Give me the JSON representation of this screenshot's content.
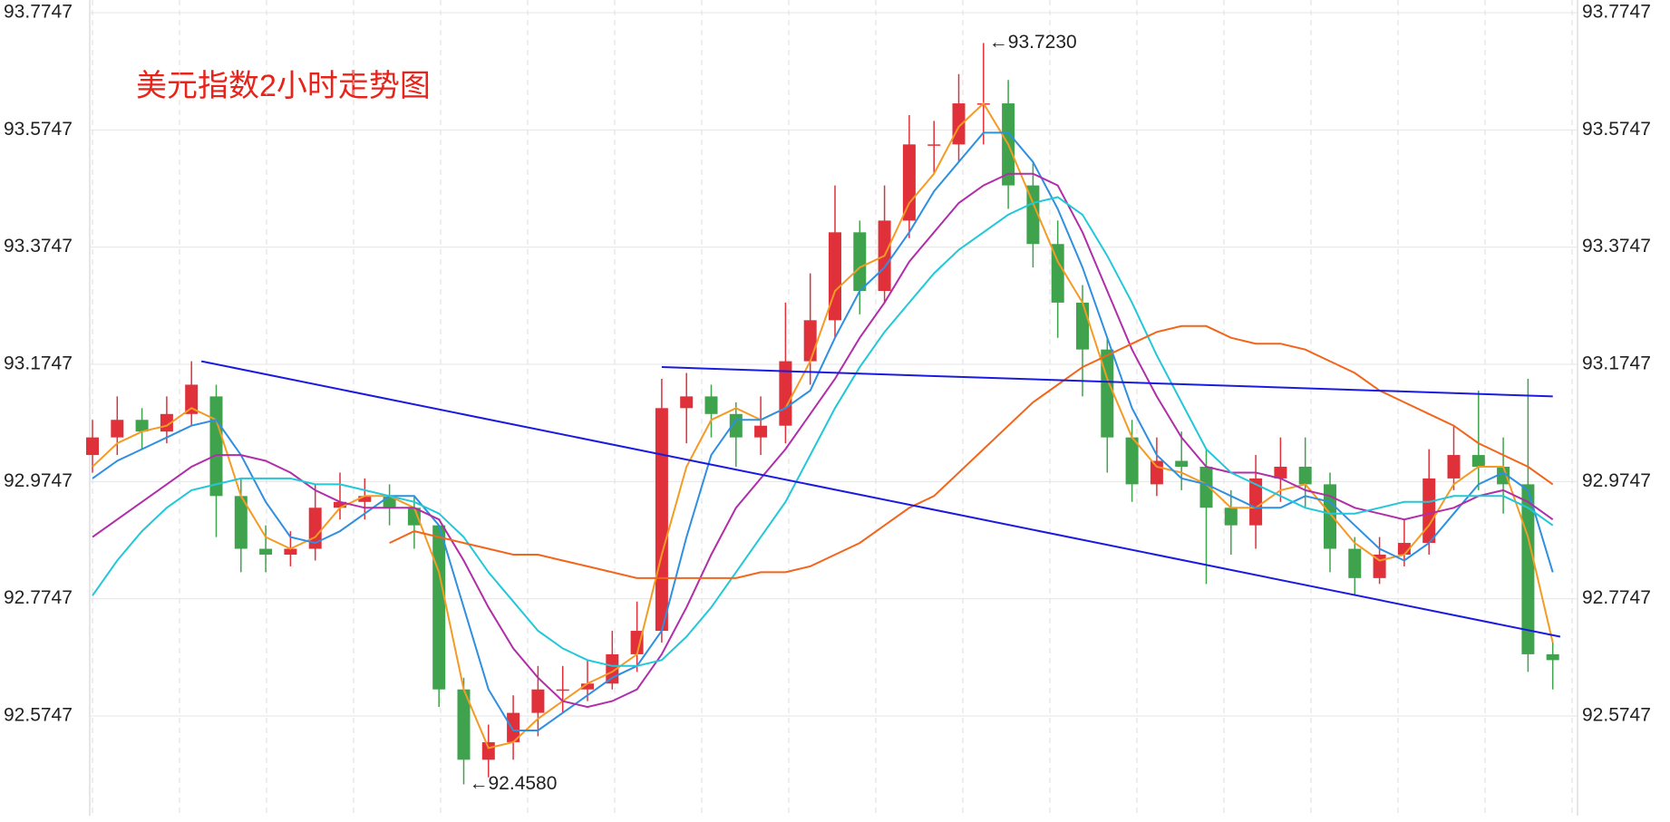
{
  "chart_data": {
    "type": "candlestick",
    "title": "美元指数2小时走势图",
    "title_color": "#e8231a",
    "ylim": [
      92.4046,
      93.7964
    ],
    "yticks": [
      92.5747,
      92.7747,
      92.9747,
      93.1747,
      93.3747,
      93.5747,
      93.7747
    ],
    "grid": true,
    "up_color": "#e0303a",
    "down_color": "#3fa34d",
    "open": [
      93.02,
      93.05,
      93.08,
      93.06,
      93.09,
      93.12,
      92.95,
      92.86,
      92.85,
      92.86,
      92.93,
      92.94,
      92.95,
      92.93,
      92.9,
      92.62,
      92.5,
      92.53,
      92.58,
      92.62,
      92.62,
      92.63,
      92.68,
      92.72,
      93.1,
      93.12,
      93.09,
      93.05,
      93.07,
      93.18,
      93.25,
      93.4,
      93.3,
      93.42,
      93.55,
      93.55,
      93.62,
      93.62,
      93.48,
      93.38,
      93.28,
      93.2,
      93.05,
      92.97,
      93.01,
      93.0,
      92.93,
      92.9,
      92.98,
      93.0,
      92.97,
      92.86,
      92.81,
      92.85,
      92.87,
      92.98,
      93.02,
      93.0,
      92.97,
      92.68
    ],
    "high": [
      93.08,
      93.12,
      93.1,
      93.12,
      93.18,
      93.14,
      92.98,
      92.9,
      92.89,
      92.97,
      92.99,
      92.98,
      92.97,
      92.95,
      92.9,
      92.64,
      92.56,
      92.61,
      92.66,
      92.66,
      92.67,
      92.72,
      92.77,
      93.15,
      93.16,
      93.14,
      93.11,
      93.12,
      93.28,
      93.33,
      93.48,
      93.42,
      93.48,
      93.6,
      93.59,
      93.67,
      93.723,
      93.66,
      93.52,
      93.42,
      93.31,
      93.22,
      93.08,
      93.05,
      93.06,
      93.03,
      92.96,
      93.02,
      93.05,
      93.05,
      92.99,
      92.88,
      92.88,
      92.91,
      93.03,
      93.07,
      93.13,
      93.05,
      93.15,
      92.7
    ],
    "low": [
      92.99,
      93.02,
      93.03,
      93.04,
      93.07,
      92.88,
      92.82,
      92.82,
      92.83,
      92.84,
      92.91,
      92.91,
      92.9,
      92.86,
      92.59,
      92.458,
      92.47,
      92.5,
      92.54,
      92.58,
      92.6,
      92.62,
      92.65,
      92.7,
      93.04,
      93.05,
      93.0,
      93.02,
      93.04,
      93.14,
      93.22,
      93.26,
      93.28,
      93.39,
      93.5,
      93.52,
      93.55,
      93.44,
      93.34,
      93.22,
      93.12,
      92.99,
      92.94,
      92.95,
      92.96,
      92.8,
      92.85,
      92.86,
      92.94,
      92.93,
      92.82,
      92.78,
      92.8,
      92.83,
      92.85,
      92.96,
      92.96,
      92.92,
      92.65,
      92.62
    ],
    "close": [
      93.05,
      93.08,
      93.06,
      93.09,
      93.14,
      92.95,
      92.86,
      92.85,
      92.86,
      92.93,
      92.94,
      92.95,
      92.93,
      92.9,
      92.62,
      92.5,
      92.53,
      92.58,
      92.62,
      92.62,
      92.63,
      92.68,
      92.72,
      93.1,
      93.12,
      93.09,
      93.05,
      93.07,
      93.18,
      93.25,
      93.4,
      93.3,
      93.42,
      93.55,
      93.55,
      93.62,
      93.62,
      93.48,
      93.38,
      93.28,
      93.2,
      93.05,
      92.97,
      93.01,
      93.0,
      92.93,
      92.9,
      92.98,
      93.0,
      92.97,
      92.86,
      92.81,
      92.85,
      92.87,
      92.98,
      93.02,
      93.0,
      92.97,
      92.68,
      92.67
    ],
    "series": [
      {
        "color": "#f59a23",
        "values": [
          93.0,
          93.04,
          93.06,
          93.07,
          93.1,
          93.08,
          92.95,
          92.88,
          92.86,
          92.88,
          92.93,
          92.95,
          92.95,
          92.93,
          92.82,
          92.62,
          92.52,
          92.53,
          92.57,
          92.6,
          92.63,
          92.65,
          92.68,
          92.85,
          93.0,
          93.08,
          93.1,
          93.08,
          93.1,
          93.18,
          93.3,
          93.34,
          93.36,
          93.45,
          93.5,
          93.58,
          93.62,
          93.55,
          93.45,
          93.35,
          93.28,
          93.15,
          93.05,
          93.0,
          92.99,
          92.97,
          92.93,
          92.93,
          92.96,
          92.97,
          92.92,
          92.87,
          92.84,
          92.85,
          92.9,
          92.97,
          93.0,
          93.0,
          92.88,
          92.7
        ]
      },
      {
        "color": "#2f8fe0",
        "values": [
          92.98,
          93.01,
          93.03,
          93.05,
          93.07,
          93.08,
          93.02,
          92.94,
          92.88,
          92.87,
          92.89,
          92.92,
          92.95,
          92.95,
          92.9,
          92.76,
          92.62,
          92.55,
          92.55,
          92.58,
          92.61,
          92.64,
          92.66,
          92.72,
          92.88,
          93.02,
          93.08,
          93.08,
          93.1,
          93.13,
          93.22,
          93.3,
          93.34,
          93.4,
          93.47,
          93.52,
          93.57,
          93.57,
          93.52,
          93.44,
          93.34,
          93.22,
          93.1,
          93.02,
          92.98,
          92.97,
          92.95,
          92.93,
          92.93,
          92.95,
          92.94,
          92.9,
          92.86,
          92.84,
          92.87,
          92.92,
          92.97,
          92.99,
          92.96,
          92.82
        ]
      },
      {
        "color": "#b02ea8",
        "values": [
          92.88,
          92.91,
          92.94,
          92.97,
          93.0,
          93.02,
          93.02,
          93.01,
          92.99,
          92.96,
          92.94,
          92.93,
          92.93,
          92.93,
          92.91,
          92.84,
          92.76,
          92.69,
          92.64,
          92.6,
          92.59,
          92.6,
          92.62,
          92.68,
          92.76,
          92.85,
          92.93,
          92.98,
          93.03,
          93.09,
          93.15,
          93.22,
          93.28,
          93.35,
          93.4,
          93.45,
          93.48,
          93.5,
          93.5,
          93.48,
          93.4,
          93.3,
          93.2,
          93.12,
          93.05,
          93.0,
          92.99,
          92.99,
          92.98,
          92.96,
          92.95,
          92.93,
          92.92,
          92.91,
          92.92,
          92.93,
          92.95,
          92.96,
          92.94,
          92.91
        ]
      },
      {
        "color": "#22c8d8",
        "values": [
          92.78,
          92.84,
          92.89,
          92.93,
          92.96,
          92.97,
          92.98,
          92.98,
          92.98,
          92.97,
          92.97,
          92.96,
          92.95,
          92.94,
          92.92,
          92.88,
          92.82,
          92.77,
          92.72,
          92.69,
          92.67,
          92.66,
          92.66,
          92.67,
          92.71,
          92.76,
          92.82,
          92.88,
          92.94,
          93.02,
          93.1,
          93.17,
          93.23,
          93.28,
          93.33,
          93.37,
          93.4,
          93.43,
          93.45,
          93.46,
          93.43,
          93.36,
          93.28,
          93.19,
          93.11,
          93.03,
          92.99,
          92.97,
          92.95,
          92.93,
          92.92,
          92.92,
          92.93,
          92.94,
          92.94,
          92.95,
          92.95,
          92.95,
          92.93,
          92.9
        ]
      },
      {
        "color": "#f2651a",
        "values": [
          null,
          null,
          null,
          null,
          null,
          null,
          null,
          null,
          null,
          null,
          null,
          null,
          92.87,
          92.89,
          92.88,
          92.87,
          92.86,
          92.85,
          92.85,
          92.84,
          92.83,
          92.82,
          92.81,
          92.81,
          92.81,
          92.81,
          92.81,
          92.82,
          92.82,
          92.83,
          92.85,
          92.87,
          92.9,
          92.93,
          92.95,
          92.99,
          93.03,
          93.07,
          93.11,
          93.14,
          93.17,
          93.19,
          93.21,
          93.23,
          93.24,
          93.24,
          93.22,
          93.21,
          93.21,
          93.2,
          93.18,
          93.16,
          93.13,
          93.11,
          93.09,
          93.07,
          93.04,
          93.02,
          93.0,
          92.97
        ]
      }
    ],
    "trendlines": [
      {
        "color": "#1a1ae0",
        "x": [
          4.4,
          59.3
        ],
        "y": [
          93.18,
          92.71
        ]
      },
      {
        "color": "#1a1ae0",
        "x": [
          23,
          59
        ],
        "y": [
          93.17,
          93.12
        ]
      }
    ],
    "annotations": [
      {
        "x": 36,
        "value": 93.723,
        "label": "←93.7230"
      },
      {
        "x": 15,
        "value": 92.458,
        "label": "←92.4580"
      }
    ]
  }
}
